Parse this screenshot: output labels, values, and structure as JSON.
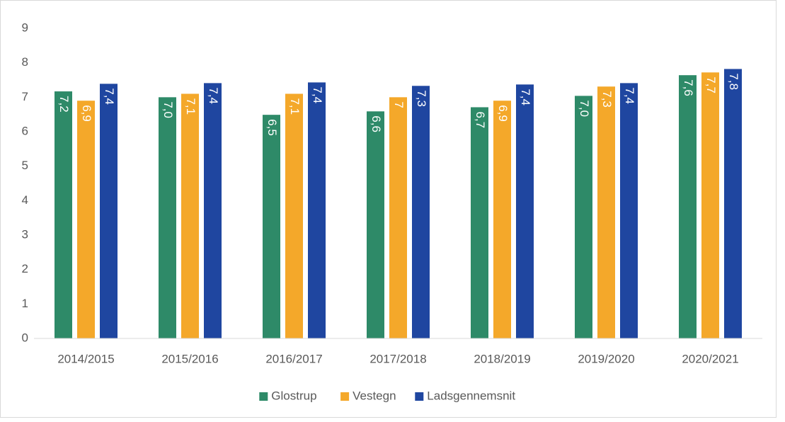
{
  "chart_data": {
    "type": "bar",
    "categories": [
      "2014/2015",
      "2015/2016",
      "2016/2017",
      "2017/2018",
      "2018/2019",
      "2019/2020",
      "2020/2021"
    ],
    "series": [
      {
        "name": "Glostrup",
        "color": "#2e8a68",
        "values": [
          7.17,
          7.0,
          6.49,
          6.59,
          6.71,
          7.04,
          7.64
        ],
        "value_labels": [
          "7,2",
          "7,0",
          "6,5",
          "6,6",
          "6,7",
          "7,0",
          "7,6"
        ]
      },
      {
        "name": "Vestegn",
        "color": "#f4a82a",
        "values": [
          6.9,
          7.1,
          7.1,
          7.0,
          6.9,
          7.31,
          7.72
        ],
        "value_labels": [
          "6,9",
          "7,1",
          "7,1",
          "7",
          "6,9",
          "7,3",
          "7,7"
        ]
      },
      {
        "name": "Ladsgennemsnit",
        "color": "#1f46a0",
        "values": [
          7.39,
          7.41,
          7.43,
          7.33,
          7.37,
          7.41,
          7.82
        ],
        "value_labels": [
          "7,4",
          "7,4",
          "7,4",
          "7,3",
          "7,4",
          "7,4",
          "7,8"
        ]
      }
    ],
    "ylim": [
      0,
      9
    ],
    "yticks": [
      0,
      1,
      2,
      3,
      4,
      5,
      6,
      7,
      8,
      9
    ],
    "grid": false,
    "legend": "bottom"
  }
}
